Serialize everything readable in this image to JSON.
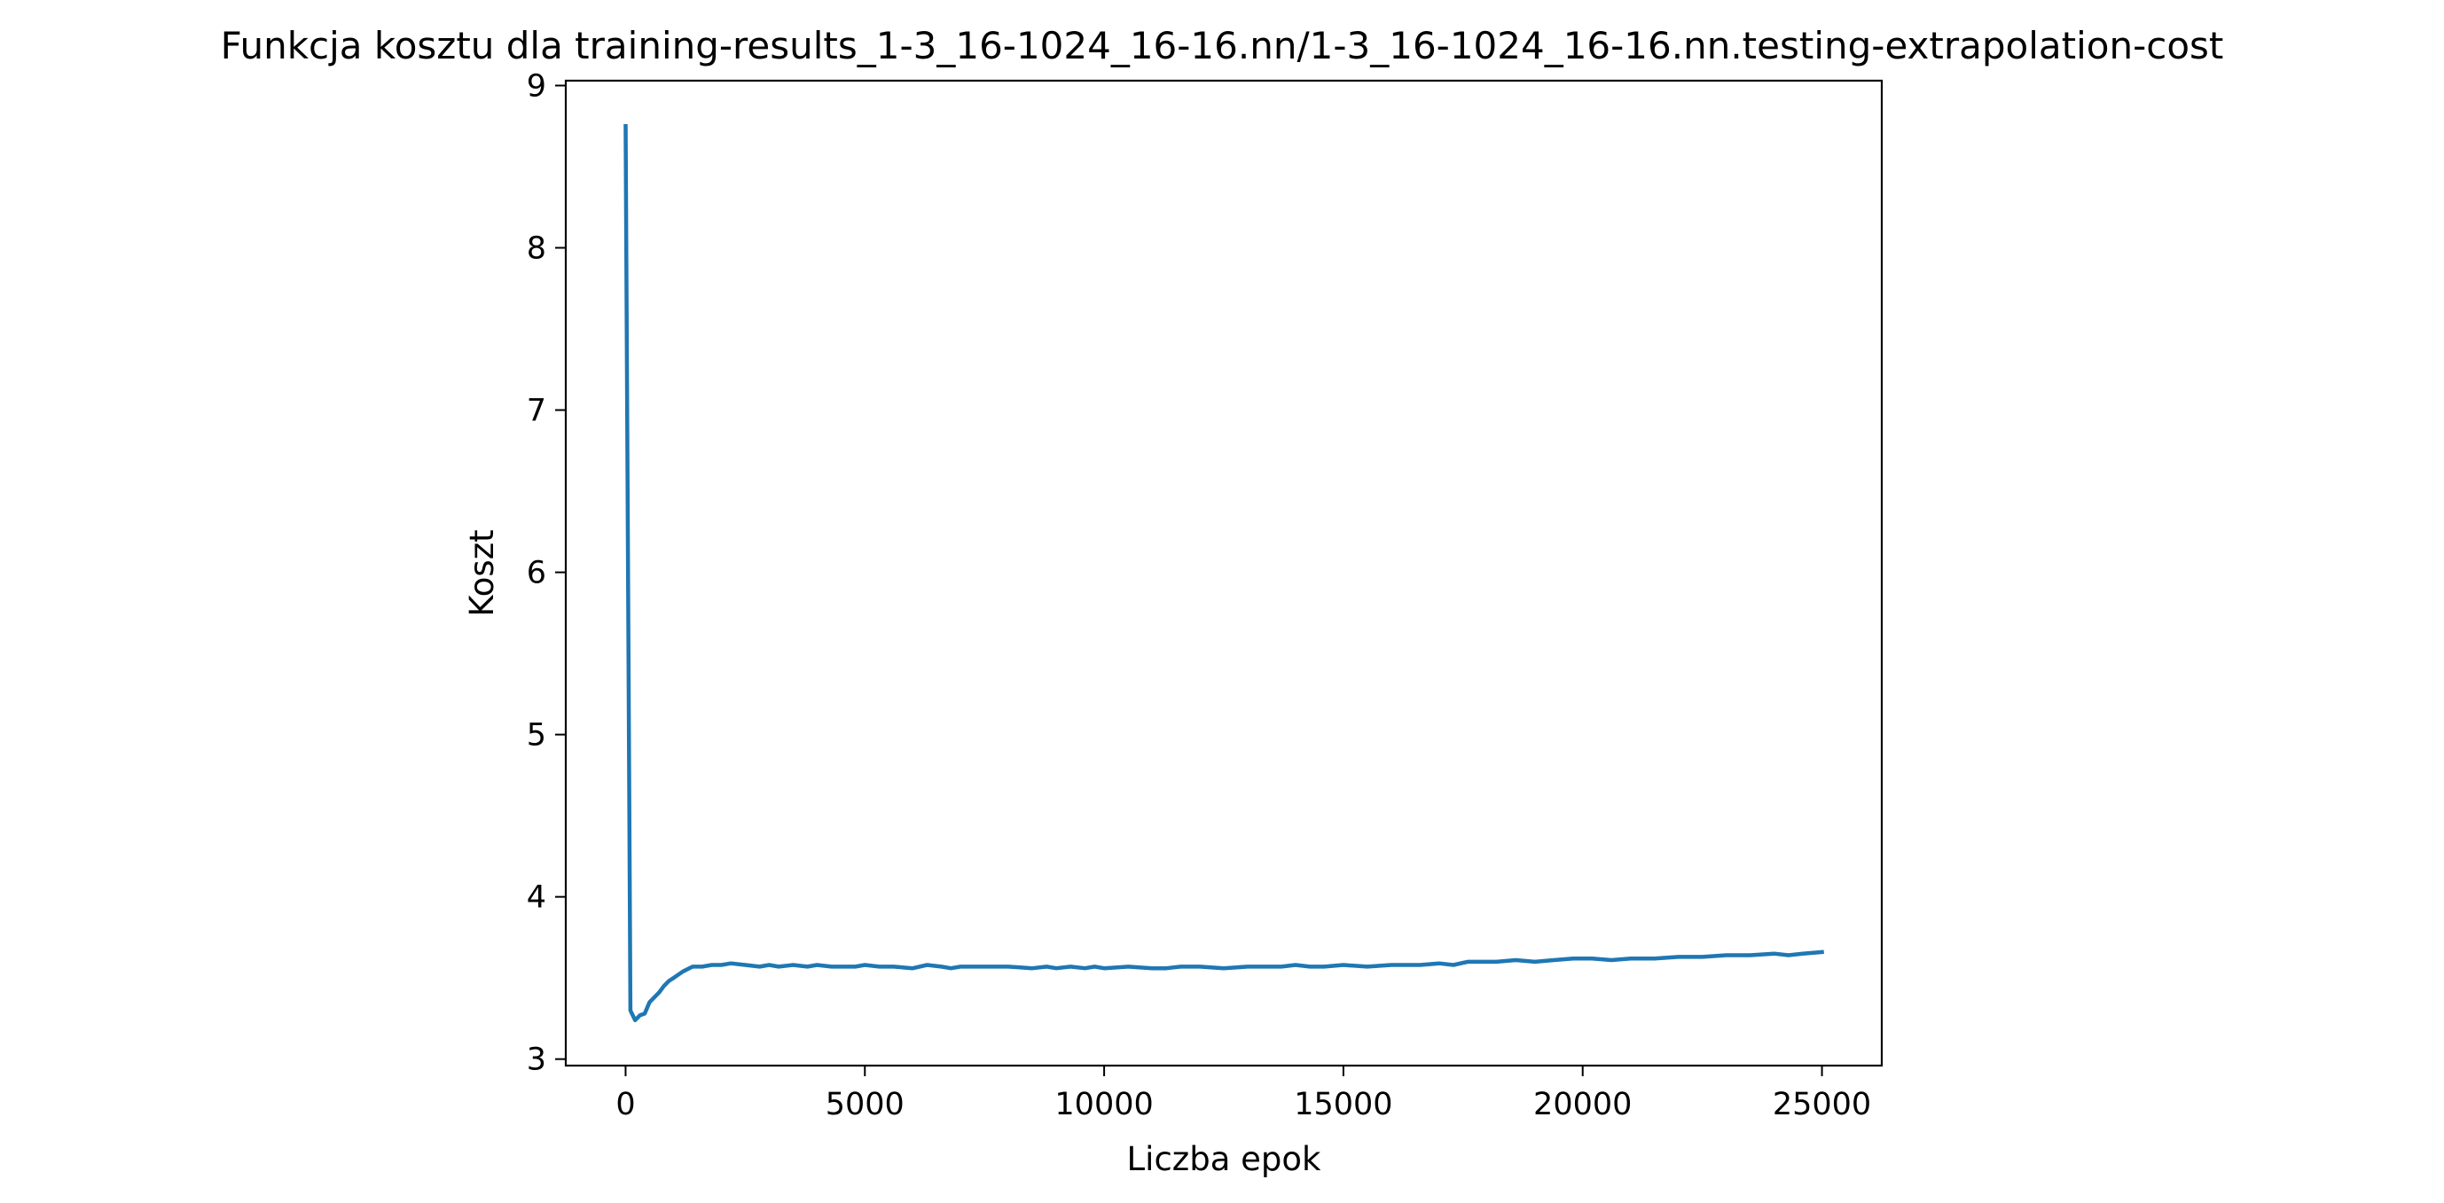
{
  "chart_data": {
    "type": "line",
    "title": "Funkcja kosztu dla training-results_1-3_16-1024_16-16.nn/1-3_16-1024_16-16.nn.testing-extrapolation-cost",
    "xlabel": "Liczba epok",
    "ylabel": "Koszt",
    "xlim": [
      -1250,
      26250
    ],
    "ylim": [
      2.96,
      9.03
    ],
    "x_ticks": [
      0,
      5000,
      10000,
      15000,
      20000,
      25000
    ],
    "x_tick_labels": [
      "0",
      "5000",
      "10000",
      "15000",
      "20000",
      "25000"
    ],
    "y_ticks": [
      3,
      4,
      5,
      6,
      7,
      8,
      9
    ],
    "y_tick_labels": [
      "3",
      "4",
      "5",
      "6",
      "7",
      "8",
      "9"
    ],
    "grid": false,
    "legend": "none",
    "series": [
      {
        "color": "#1f77b4",
        "x": [
          0,
          100,
          200,
          300,
          400,
          500,
          600,
          700,
          800,
          900,
          1000,
          1200,
          1400,
          1600,
          1800,
          2000,
          2200,
          2500,
          2800,
          3000,
          3200,
          3500,
          3800,
          4000,
          4300,
          4500,
          4800,
          5000,
          5300,
          5600,
          6000,
          6300,
          6600,
          6800,
          7000,
          7500,
          8000,
          8500,
          8800,
          9000,
          9300,
          9600,
          9800,
          10000,
          10500,
          11000,
          11300,
          11600,
          12000,
          12500,
          13000,
          13300,
          13700,
          14000,
          14300,
          14600,
          15000,
          15500,
          16000,
          16300,
          16600,
          17000,
          17300,
          17600,
          17900,
          18200,
          18600,
          19000,
          19400,
          19800,
          20200,
          20600,
          21000,
          21500,
          22000,
          22500,
          23000,
          23500,
          24000,
          24300,
          24600,
          25000
        ],
        "y": [
          8.75,
          3.3,
          3.24,
          3.27,
          3.28,
          3.35,
          3.38,
          3.41,
          3.45,
          3.48,
          3.5,
          3.54,
          3.57,
          3.57,
          3.58,
          3.58,
          3.59,
          3.58,
          3.57,
          3.58,
          3.57,
          3.58,
          3.57,
          3.58,
          3.57,
          3.57,
          3.57,
          3.58,
          3.57,
          3.57,
          3.56,
          3.58,
          3.57,
          3.56,
          3.57,
          3.57,
          3.57,
          3.56,
          3.57,
          3.56,
          3.57,
          3.56,
          3.57,
          3.56,
          3.57,
          3.56,
          3.56,
          3.57,
          3.57,
          3.56,
          3.57,
          3.57,
          3.57,
          3.58,
          3.57,
          3.57,
          3.58,
          3.57,
          3.58,
          3.58,
          3.58,
          3.59,
          3.58,
          3.6,
          3.6,
          3.6,
          3.61,
          3.6,
          3.61,
          3.62,
          3.62,
          3.61,
          3.62,
          3.62,
          3.63,
          3.63,
          3.64,
          3.64,
          3.65,
          3.64,
          3.65,
          3.66
        ]
      }
    ]
  }
}
